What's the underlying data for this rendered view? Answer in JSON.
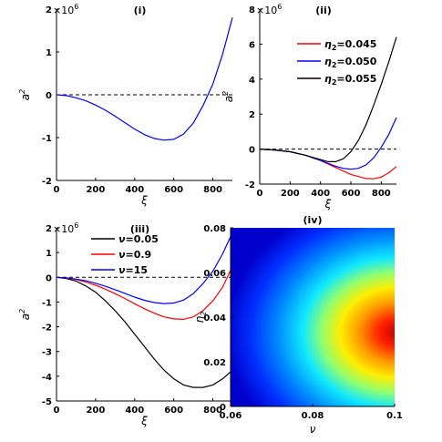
{
  "chart_data": [
    {
      "type": "line",
      "title": "(i)",
      "multiplier": "×10",
      "multiplier_exp": "6",
      "xlabel": "ξ",
      "ylabel": "a",
      "ylabel_sup": "2",
      "xlim": [
        0,
        900
      ],
      "ylim": [
        -2,
        2
      ],
      "xticks": [
        "0",
        "200",
        "400",
        "600",
        "800"
      ],
      "yticks": [
        "-2",
        "-1",
        "0",
        "1",
        "2"
      ],
      "zero_line": true,
      "series": [
        {
          "name": "",
          "color": "#0000ff",
          "x": [
            0,
            50,
            100,
            150,
            200,
            250,
            300,
            350,
            400,
            450,
            500,
            550,
            600,
            650,
            700,
            750,
            800,
            850,
            900
          ],
          "y": [
            0,
            -0.02,
            -0.07,
            -0.14,
            -0.24,
            -0.36,
            -0.5,
            -0.65,
            -0.8,
            -0.93,
            -1.02,
            -1.06,
            -1.04,
            -0.92,
            -0.66,
            -0.25,
            0.25,
            0.95,
            1.8
          ]
        }
      ]
    },
    {
      "type": "line",
      "title": "(ii)",
      "multiplier": "×10",
      "multiplier_exp": "6",
      "xlabel": "ξ",
      "ylabel": "a",
      "ylabel_sup": "2",
      "xlim": [
        0,
        900
      ],
      "ylim": [
        -2,
        8
      ],
      "xticks": [
        "0",
        "200",
        "400",
        "600",
        "800"
      ],
      "yticks": [
        "-2",
        "0",
        "2",
        "4",
        "6",
        "8"
      ],
      "zero_line": true,
      "legend_position": "top-right",
      "series": [
        {
          "name": "η",
          "name_sub": "2",
          "name_value": "=0.045",
          "color": "#ff0000",
          "x": [
            0,
            100,
            200,
            300,
            400,
            500,
            600,
            700,
            750,
            800,
            850,
            900
          ],
          "y": [
            0,
            -0.05,
            -0.15,
            -0.35,
            -0.65,
            -1.05,
            -1.45,
            -1.68,
            -1.7,
            -1.6,
            -1.35,
            -1.0
          ]
        },
        {
          "name": "η",
          "name_sub": "2",
          "name_value": "=0.050",
          "color": "#0000ff",
          "x": [
            0,
            100,
            200,
            300,
            400,
            500,
            550,
            600,
            650,
            700,
            750,
            800,
            850,
            900
          ],
          "y": [
            0,
            -0.05,
            -0.15,
            -0.35,
            -0.65,
            -0.98,
            -1.1,
            -1.15,
            -1.1,
            -0.9,
            -0.5,
            0.1,
            0.85,
            1.8
          ]
        },
        {
          "name": "η",
          "name_sub": "2",
          "name_value": "=0.055",
          "color": "#000000",
          "x": [
            0,
            100,
            200,
            300,
            400,
            450,
            500,
            550,
            600,
            650,
            700,
            750,
            800,
            850,
            900
          ],
          "y": [
            0,
            -0.05,
            -0.15,
            -0.35,
            -0.6,
            -0.72,
            -0.72,
            -0.55,
            -0.15,
            0.5,
            1.4,
            2.5,
            3.7,
            5.0,
            6.4
          ]
        }
      ]
    },
    {
      "type": "line",
      "title": "(iii)",
      "multiplier": "×10",
      "multiplier_exp": "6",
      "xlabel": "ξ",
      "ylabel": "a",
      "ylabel_sup": "2",
      "xlim": [
        0,
        900
      ],
      "ylim": [
        -5,
        2
      ],
      "xticks": [
        "0",
        "200",
        "400",
        "600",
        "800"
      ],
      "yticks": [
        "-5",
        "-4",
        "-3",
        "-2",
        "-1",
        "0",
        "1",
        "2"
      ],
      "zero_line": true,
      "legend_position": "top-right",
      "series": [
        {
          "name": "ν",
          "name_value": "=0.05",
          "color": "#000000",
          "x": [
            0,
            50,
            100,
            150,
            200,
            250,
            300,
            350,
            400,
            450,
            500,
            550,
            600,
            650,
            700,
            750,
            800,
            850,
            880,
            900
          ],
          "y": [
            0,
            -0.05,
            -0.15,
            -0.35,
            -0.6,
            -0.95,
            -1.35,
            -1.8,
            -2.3,
            -2.8,
            -3.3,
            -3.75,
            -4.1,
            -4.35,
            -4.45,
            -4.45,
            -4.35,
            -4.1,
            -3.9,
            -3.75
          ]
        },
        {
          "name": "ν",
          "name_value": "=0.9",
          "color": "#ff0000",
          "x": [
            0,
            50,
            100,
            150,
            200,
            250,
            300,
            350,
            400,
            450,
            500,
            550,
            600,
            650,
            700,
            750,
            800,
            850,
            900
          ],
          "y": [
            0,
            -0.03,
            -0.09,
            -0.19,
            -0.32,
            -0.48,
            -0.66,
            -0.86,
            -1.07,
            -1.27,
            -1.45,
            -1.6,
            -1.68,
            -1.7,
            -1.6,
            -1.35,
            -0.95,
            -0.4,
            0.45
          ]
        },
        {
          "name": "ν",
          "name_value": "=15",
          "color": "#0000ff",
          "x": [
            0,
            50,
            100,
            150,
            200,
            250,
            300,
            350,
            400,
            450,
            500,
            550,
            600,
            650,
            700,
            750,
            800,
            850,
            900
          ],
          "y": [
            0,
            -0.02,
            -0.07,
            -0.14,
            -0.24,
            -0.36,
            -0.5,
            -0.65,
            -0.8,
            -0.93,
            -1.02,
            -1.06,
            -1.04,
            -0.92,
            -0.66,
            -0.25,
            0.25,
            0.95,
            1.8
          ]
        }
      ]
    },
    {
      "type": "heatmap",
      "title": "(iv)",
      "xlabel": "ν",
      "ylabel": "η",
      "ylabel_sub": "2",
      "xlim": [
        0.06,
        0.1
      ],
      "ylim": [
        0,
        0.08
      ],
      "xticks": [
        "0.06",
        "0.08",
        "0.1"
      ],
      "yticks": [
        "0",
        "0.02",
        "0.04",
        "0.06",
        "0.08"
      ],
      "colormap": "jet",
      "peak": {
        "x": 0.1,
        "y": 0.03
      }
    }
  ]
}
